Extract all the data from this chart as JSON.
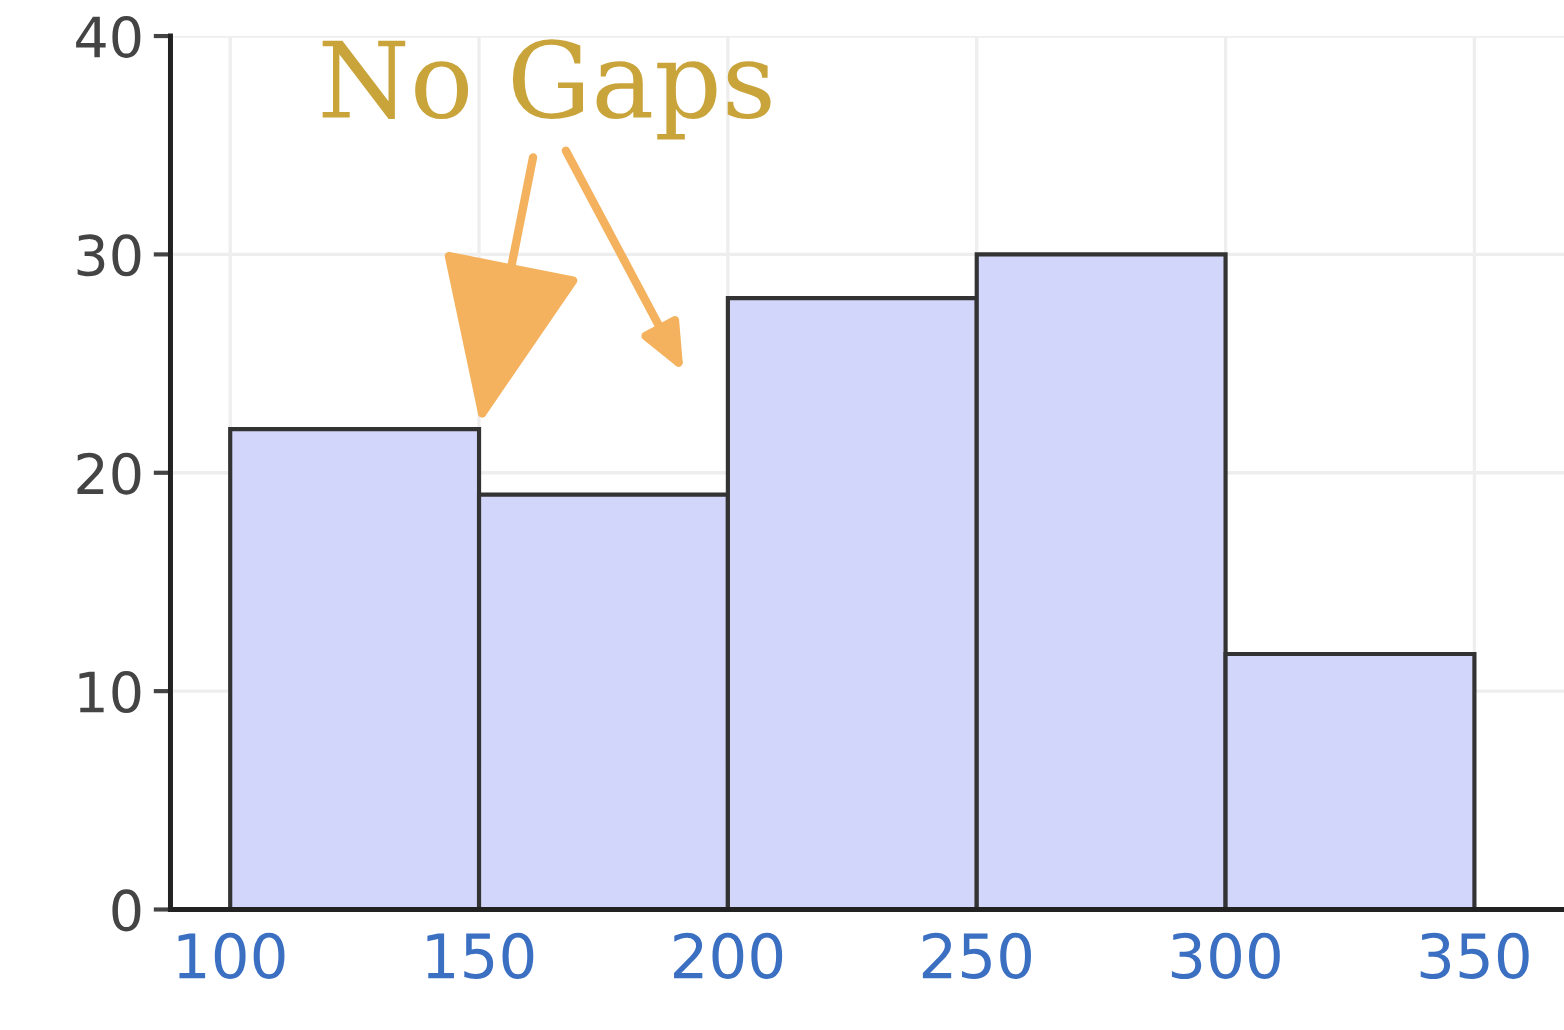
{
  "chart_data": {
    "type": "histogram",
    "bins": [
      100,
      150,
      200,
      250,
      300,
      350
    ],
    "values": [
      22,
      19,
      28,
      30,
      11.7
    ],
    "color": "#d3d6fb",
    "xlim": [
      88,
      368
    ],
    "ylim": [
      0,
      40
    ],
    "xticks": [
      100,
      150,
      200,
      250,
      300,
      350
    ],
    "yticks": [
      0,
      10,
      20,
      30,
      40
    ],
    "grid": true,
    "annotations": [
      {
        "text": "No Gaps",
        "x": 150,
        "y": 22
      }
    ]
  }
}
